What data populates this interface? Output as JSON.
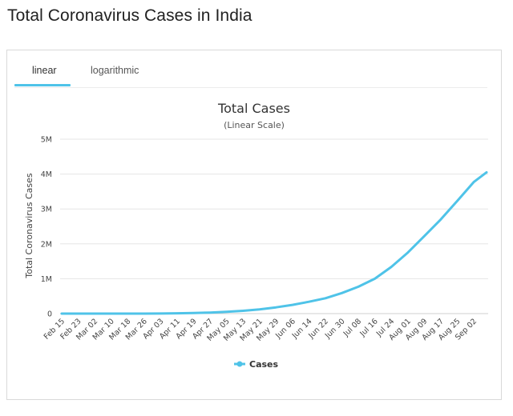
{
  "page": {
    "title": "Total Coronavirus Cases in India"
  },
  "tabs": [
    {
      "label": "linear",
      "active": true
    },
    {
      "label": "logarithmic",
      "active": false
    }
  ],
  "colors": {
    "accent": "#4fc3e8",
    "grid": "#e6e6e6"
  },
  "chart_data": {
    "type": "line",
    "title": "Total Cases",
    "subtitle": "(Linear Scale)",
    "ylabel": "Total Coronavirus Cases",
    "xlabel": "",
    "ylim": [
      0,
      5000000
    ],
    "y_ticks": [
      {
        "value": 0,
        "label": "0"
      },
      {
        "value": 1000000,
        "label": "1M"
      },
      {
        "value": 2000000,
        "label": "2M"
      },
      {
        "value": 3000000,
        "label": "3M"
      },
      {
        "value": 4000000,
        "label": "4M"
      },
      {
        "value": 5000000,
        "label": "5M"
      }
    ],
    "categories": [
      "Feb 15",
      "Feb 23",
      "Mar 02",
      "Mar 10",
      "Mar 18",
      "Mar 26",
      "Apr 03",
      "Apr 11",
      "Apr 19",
      "Apr 27",
      "May 05",
      "May 13",
      "May 21",
      "May 29",
      "Jun 06",
      "Jun 14",
      "Jun 22",
      "Jun 30",
      "Jul 08",
      "Jul 16",
      "Jul 24",
      "Aug 01",
      "Aug 09",
      "Aug 17",
      "Aug 25",
      "Sep 02"
    ],
    "grid": true,
    "legend": "bottom-center",
    "series": [
      {
        "name": "Cases",
        "values": [
          3,
          3,
          5,
          50,
          150,
          700,
          2500,
          8500,
          17000,
          29000,
          50000,
          80000,
          120000,
          180000,
          250000,
          340000,
          440000,
          590000,
          770000,
          1000000,
          1340000,
          1750000,
          2220000,
          2700000,
          3230000,
          3770000
        ]
      }
    ],
    "end_value": 4050000
  }
}
